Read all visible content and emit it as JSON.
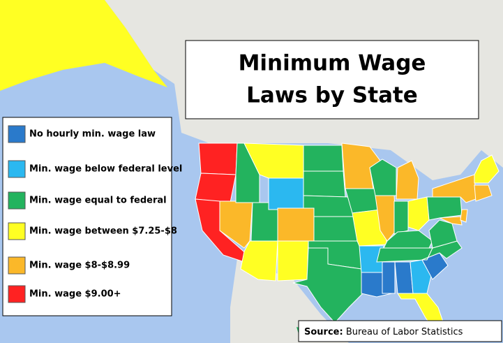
{
  "title": {
    "lines": [
      "Minimum Wage",
      "Laws by State"
    ]
  },
  "legend": [
    {
      "label": "No hourly min. wage law",
      "color": "#2a7acb"
    },
    {
      "label": "Min. wage below federal level",
      "color": "#2bb8f0"
    },
    {
      "label": "Min. wage equal to federal",
      "color": "#23b35e"
    },
    {
      "label": "Min. wage between $7.25-$8",
      "color": "#ffff23"
    },
    {
      "label": "Min. wage  $8-$8.99",
      "color": "#fbb829"
    },
    {
      "label": "Min. wage $9.00+",
      "color": "#ff2222"
    }
  ],
  "source": {
    "label": "Source:",
    "text": "Bureau of Labor Statistics"
  }
}
